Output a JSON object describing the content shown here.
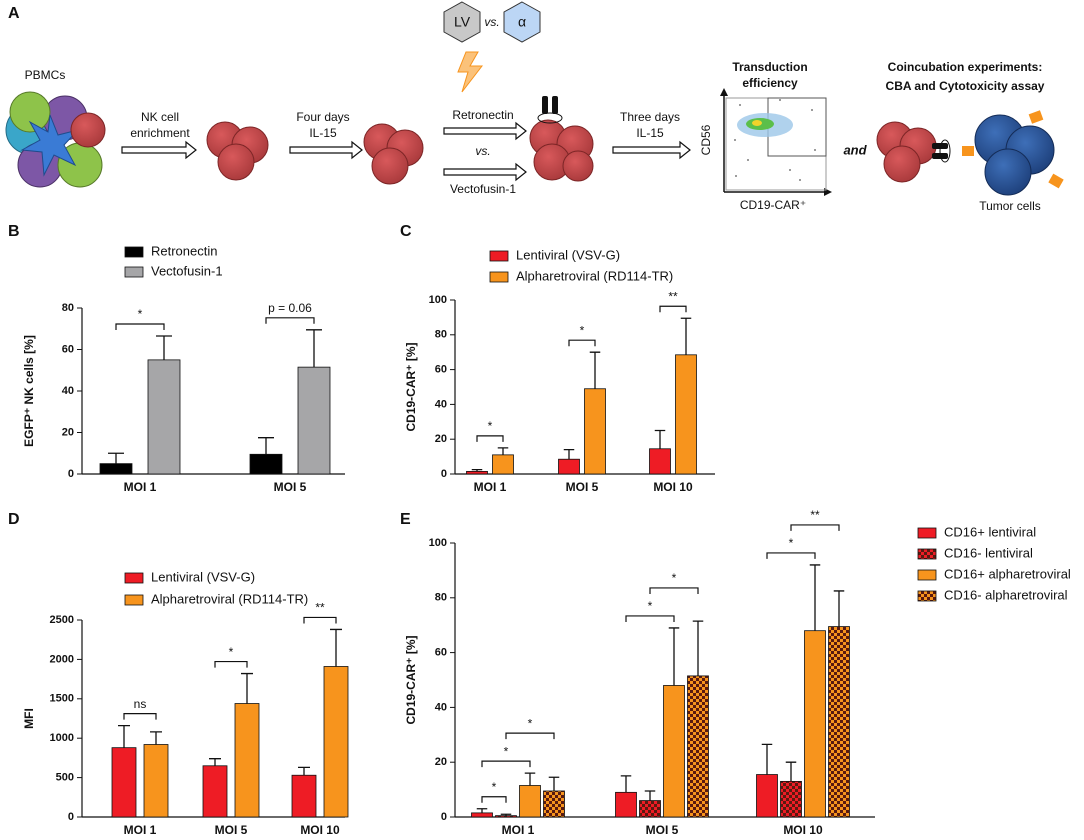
{
  "diagram": {
    "label": "A",
    "pbmcs": "PBMCs",
    "step1": [
      "NK cell",
      "enrichment"
    ],
    "step2": [
      "Four days",
      "IL-15"
    ],
    "lv": "LV",
    "vs1": "vs.",
    "alpha": "α",
    "retronectin": "Retronectin",
    "vs2": "vs.",
    "vectofusin": "Vectofusin-1",
    "step3": [
      "Three days",
      "IL-15"
    ],
    "transduction": [
      "Transduction",
      "efficiency"
    ],
    "cd56": "CD56",
    "cd19": "CD19-CAR⁺",
    "and": "and",
    "coincubation": [
      "Coincubation experiments:",
      "CBA and Cytotoxicity assay"
    ],
    "tumor": "Tumor cells"
  },
  "chart_data": [
    {
      "type": "bar",
      "panel": "B",
      "y_label": "EGFP⁺ NK cells [%]",
      "categories": [
        "MOI 1",
        "MOI 5"
      ],
      "series": [
        {
          "name": "Retronectin",
          "color": "#000000",
          "values": [
            5,
            9.5
          ],
          "errors": [
            5,
            8
          ]
        },
        {
          "name": "Vectofusin-1",
          "color": "#a6a6a8",
          "values": [
            55,
            51.5
          ],
          "errors": [
            11.5,
            18
          ]
        }
      ],
      "ylim": [
        0,
        80
      ],
      "yticks": [
        0,
        20,
        40,
        60,
        80
      ],
      "annotations": [
        [
          {
            "text": "*",
            "between": [
              0,
              1
            ]
          }
        ],
        [
          {
            "text": "p = 0.06",
            "between": [
              0,
              1
            ]
          }
        ]
      ]
    },
    {
      "type": "bar",
      "panel": "C",
      "y_label": "CD19-CAR⁺ [%]",
      "categories": [
        "MOI 1",
        "MOI 5",
        "MOI 10"
      ],
      "series": [
        {
          "name": "Lentiviral (VSV-G)",
          "color": "#ee1c25",
          "values": [
            1.5,
            8.5,
            14.5
          ],
          "errors": [
            1,
            5.5,
            10.5
          ]
        },
        {
          "name": "Alpharetroviral (RD114-TR)",
          "color": "#f7941d",
          "values": [
            11,
            49,
            68.5
          ],
          "errors": [
            4,
            21,
            21
          ]
        }
      ],
      "ylim": [
        0,
        100
      ],
      "yticks": [
        0,
        20,
        40,
        60,
        80,
        100
      ],
      "annotations": [
        [
          {
            "text": "*",
            "between": [
              0,
              1
            ]
          }
        ],
        [
          {
            "text": "*",
            "between": [
              0,
              1
            ]
          }
        ],
        [
          {
            "text": "**",
            "between": [
              0,
              1
            ]
          }
        ]
      ]
    },
    {
      "type": "bar",
      "panel": "D",
      "y_label": "MFI",
      "categories": [
        "MOI 1",
        "MOI 5",
        "MOI 10"
      ],
      "series": [
        {
          "name": "Lentiviral (VSV-G)",
          "color": "#ee1c25",
          "values": [
            880,
            650,
            530
          ],
          "errors": [
            280,
            90,
            100
          ]
        },
        {
          "name": "Alpharetroviral (RD114-TR)",
          "color": "#f7941d",
          "values": [
            920,
            1440,
            1910
          ],
          "errors": [
            160,
            380,
            470
          ]
        }
      ],
      "ylim": [
        0,
        2500
      ],
      "yticks": [
        0,
        500,
        1000,
        1500,
        2000,
        2500
      ],
      "annotations": [
        [
          {
            "text": "ns",
            "between": [
              0,
              1
            ]
          }
        ],
        [
          {
            "text": "*",
            "between": [
              0,
              1
            ]
          }
        ],
        [
          {
            "text": "**",
            "between": [
              0,
              1
            ]
          }
        ]
      ]
    },
    {
      "type": "bar",
      "panel": "E",
      "y_label": "CD19-CAR⁺ [%]",
      "categories": [
        "MOI 1",
        "MOI 5",
        "MOI 10"
      ],
      "series": [
        {
          "name": "CD16+ lentiviral",
          "color": "#ee1c25",
          "values": [
            1.5,
            9,
            15.5
          ],
          "errors": [
            1.5,
            6,
            11
          ]
        },
        {
          "name": "CD16- lentiviral",
          "color": "#ee1c25",
          "pattern": "checkered",
          "values": [
            0.5,
            6,
            13
          ],
          "errors": [
            0.5,
            3.5,
            7
          ]
        },
        {
          "name": "CD16+ alpharetroviral",
          "color": "#f7941d",
          "values": [
            11.5,
            48,
            68
          ],
          "errors": [
            4.5,
            21,
            24
          ]
        },
        {
          "name": "CD16- alpharetroviral",
          "color": "#f7941d",
          "pattern": "checkered",
          "values": [
            9.5,
            51.5,
            69.5
          ],
          "errors": [
            5,
            20,
            13
          ]
        }
      ],
      "ylim": [
        0,
        100
      ],
      "yticks": [
        0,
        20,
        40,
        60,
        80,
        100
      ],
      "annotations": [
        [
          {
            "text": "*",
            "between": [
              0,
              1
            ]
          },
          {
            "text": "*",
            "between": [
              0,
              2
            ]
          },
          {
            "text": "*",
            "between": [
              1,
              3
            ]
          }
        ],
        [
          {
            "text": "*",
            "between": [
              0,
              2
            ]
          },
          {
            "text": "*",
            "between": [
              1,
              3
            ]
          }
        ],
        [
          {
            "text": "*",
            "between": [
              0,
              2
            ]
          },
          {
            "text": "**",
            "between": [
              1,
              3
            ]
          }
        ]
      ]
    }
  ]
}
